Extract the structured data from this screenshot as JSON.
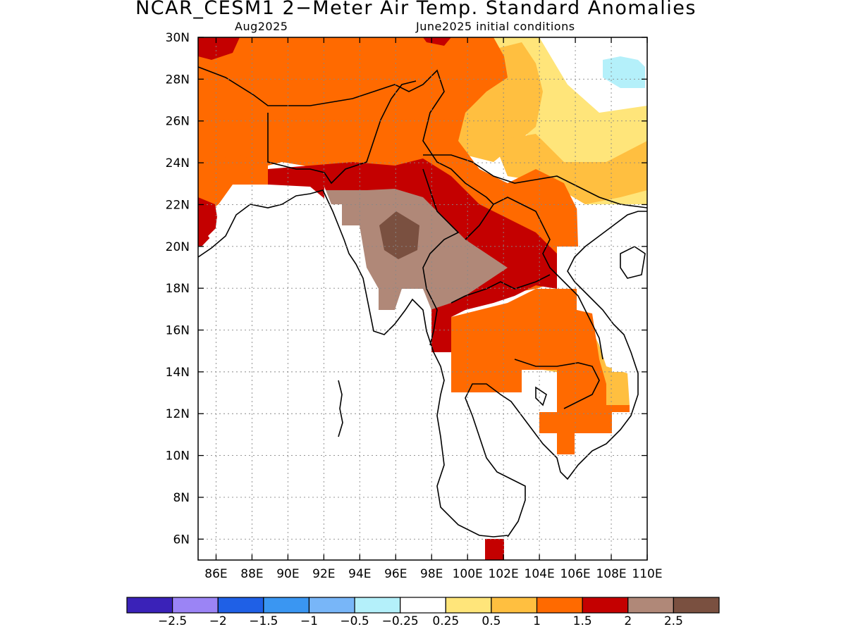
{
  "title": "NCAR_CESM1 2−Meter Air Temp. Standard Anomalies",
  "subtitle_left": "Aug2025",
  "subtitle_right": "June2025 initial conditions",
  "map": {
    "lon_range": [
      85,
      110
    ],
    "lat_range": [
      5,
      30
    ],
    "lon_ticks": [
      "86E",
      "88E",
      "90E",
      "92E",
      "94E",
      "96E",
      "98E",
      "100E",
      "102E",
      "104E",
      "106E",
      "108E",
      "110E"
    ],
    "lat_ticks": [
      "30N",
      "28N",
      "26N",
      "24N",
      "22N",
      "20N",
      "18N",
      "16N",
      "14N",
      "12N",
      "10N",
      "8N",
      "6N"
    ],
    "grid": true,
    "gridline_style": "dotted"
  },
  "colors": {
    "0.25-0.5": "#ffe57a",
    "0.5-1": "#ffbf40",
    "1-1.5": "#ff6a00",
    "1.5-2": "#c40000",
    "2-2.5": "#b08878",
    "gt-2.5": "#7a5040",
    "-0.5--0.25": "#b4f0fa"
  },
  "colorbar": {
    "colors": [
      "#3a22b8",
      "#9b84f5",
      "#1f60e6",
      "#3a96f2",
      "#78b6f8",
      "#b4f0fa",
      "#ffffff",
      "#ffe57a",
      "#ffbf40",
      "#ff6a00",
      "#c40000",
      "#b08878",
      "#7a5040"
    ],
    "labels": [
      "−2.5",
      "−2",
      "−1.5",
      "−1",
      "−0.5",
      "−0.25",
      "0.25",
      "0.5",
      "1",
      "1.5",
      "2",
      "2.5"
    ]
  }
}
